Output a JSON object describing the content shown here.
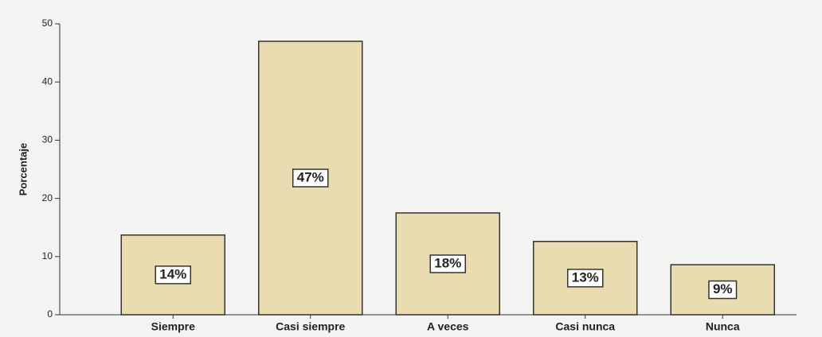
{
  "chart_data": {
    "type": "bar",
    "ylabel": "Porcentaje",
    "categories": [
      "Siempre",
      "Casi siempre",
      "A veces",
      "Casi nunca",
      "Nunca"
    ],
    "values": [
      13.7,
      47,
      17.5,
      12.6,
      8.6
    ],
    "value_labels": [
      "14%",
      "47%",
      "18%",
      "13%",
      "9%"
    ],
    "color": "#e8dcb0",
    "ylim": [
      0,
      50
    ],
    "yticks": [
      0,
      10,
      20,
      30,
      40,
      50
    ]
  }
}
